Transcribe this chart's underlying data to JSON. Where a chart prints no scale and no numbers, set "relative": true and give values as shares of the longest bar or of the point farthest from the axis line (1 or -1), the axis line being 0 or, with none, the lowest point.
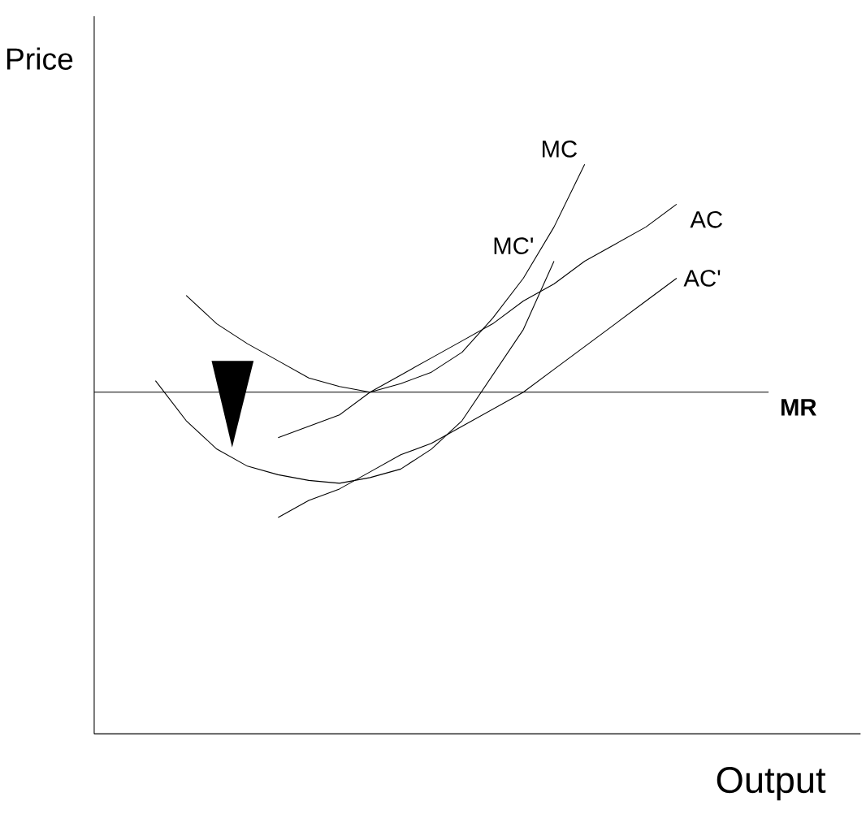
{
  "chart_data": {
    "type": "line",
    "relative": true,
    "xlabel": "Output",
    "ylabel": "Price",
    "marker": "none",
    "line_style": "solid",
    "categories": [
      null,
      null,
      null,
      null,
      null,
      null,
      null,
      null,
      null,
      null,
      null,
      null,
      null,
      null,
      null,
      null,
      null,
      null,
      null,
      null,
      null,
      null,
      null
    ],
    "series": [
      {
        "name": "MC",
        "color": "#000000",
        "values": [
          null,
          null,
          null,
          0.77,
          0.72,
          0.685,
          0.655,
          0.625,
          0.61,
          0.6,
          0.615,
          0.635,
          0.67,
          0.73,
          0.8,
          0.89,
          1.0,
          null,
          null,
          null,
          null,
          null,
          null
        ]
      },
      {
        "name": "MC'",
        "color": "#000000",
        "values": [
          null,
          null,
          0.62,
          0.55,
          0.5,
          0.47,
          0.455,
          0.445,
          0.44,
          0.45,
          0.465,
          0.5,
          0.55,
          0.63,
          0.71,
          0.83,
          null,
          null,
          null,
          null,
          null,
          null,
          null
        ]
      },
      {
        "name": "AC",
        "color": "#000000",
        "values": [
          null,
          null,
          null,
          null,
          null,
          null,
          0.52,
          0.54,
          0.56,
          0.6,
          0.63,
          0.66,
          0.69,
          0.72,
          0.76,
          0.79,
          0.83,
          0.86,
          0.89,
          0.93,
          null,
          null,
          null
        ]
      },
      {
        "name": "AC'",
        "color": "#000000",
        "values": [
          null,
          null,
          null,
          null,
          null,
          null,
          0.38,
          0.41,
          0.43,
          0.46,
          0.49,
          0.51,
          0.54,
          0.57,
          0.6,
          0.64,
          0.68,
          0.72,
          0.76,
          0.8,
          null,
          null,
          null
        ]
      },
      {
        "name": "MR",
        "color": "#000000",
        "values": [
          0.6,
          0.6,
          0.6,
          0.6,
          0.6,
          0.6,
          0.6,
          0.6,
          0.6,
          0.6,
          0.6,
          0.6,
          0.6,
          0.6,
          0.6,
          0.6,
          0.6,
          0.6,
          0.6,
          0.6,
          0.6,
          0.6,
          0.6
        ]
      }
    ]
  }
}
